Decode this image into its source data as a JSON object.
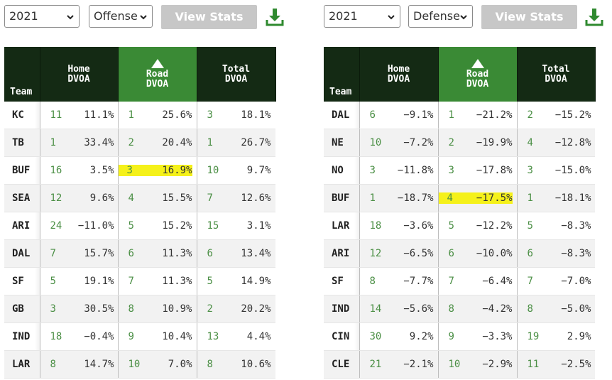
{
  "colors": {
    "header_dark": "#142a14",
    "header_highlight": "#3a8a35",
    "rank_text": "#4b8f45",
    "button_bg": "#c7c7c7",
    "highlight": "#f5f11a"
  },
  "panels": [
    {
      "year_select": "2021",
      "side_select": "Offense",
      "view_button": "View Stats",
      "download_icon": "download-icon",
      "headers": {
        "team": "Team",
        "home": [
          "Home",
          "DVOA"
        ],
        "road": [
          "Road",
          "DVOA"
        ],
        "total": [
          "Total",
          "DVOA"
        ],
        "sort_indicator": "triangle-up"
      },
      "highlight_row": 2,
      "rows": [
        {
          "team": "KC",
          "home_rank": "11",
          "home_dvoa": "11.1%",
          "road_rank": "1",
          "road_dvoa": "25.6%",
          "total_rank": "3",
          "total_dvoa": "18.1%"
        },
        {
          "team": "TB",
          "home_rank": "1",
          "home_dvoa": "33.4%",
          "road_rank": "2",
          "road_dvoa": "20.4%",
          "total_rank": "1",
          "total_dvoa": "26.7%"
        },
        {
          "team": "BUF",
          "home_rank": "16",
          "home_dvoa": "3.5%",
          "road_rank": "3",
          "road_dvoa": "16.9%",
          "total_rank": "10",
          "total_dvoa": "9.7%"
        },
        {
          "team": "SEA",
          "home_rank": "12",
          "home_dvoa": "9.6%",
          "road_rank": "4",
          "road_dvoa": "15.5%",
          "total_rank": "7",
          "total_dvoa": "12.6%"
        },
        {
          "team": "ARI",
          "home_rank": "24",
          "home_dvoa": "−11.0%",
          "road_rank": "5",
          "road_dvoa": "15.2%",
          "total_rank": "15",
          "total_dvoa": "3.1%"
        },
        {
          "team": "DAL",
          "home_rank": "7",
          "home_dvoa": "15.7%",
          "road_rank": "6",
          "road_dvoa": "11.3%",
          "total_rank": "6",
          "total_dvoa": "13.4%"
        },
        {
          "team": "SF",
          "home_rank": "5",
          "home_dvoa": "19.1%",
          "road_rank": "7",
          "road_dvoa": "11.3%",
          "total_rank": "5",
          "total_dvoa": "14.9%"
        },
        {
          "team": "GB",
          "home_rank": "3",
          "home_dvoa": "30.5%",
          "road_rank": "8",
          "road_dvoa": "10.9%",
          "total_rank": "2",
          "total_dvoa": "20.2%"
        },
        {
          "team": "IND",
          "home_rank": "18",
          "home_dvoa": "−0.4%",
          "road_rank": "9",
          "road_dvoa": "10.4%",
          "total_rank": "13",
          "total_dvoa": "4.4%"
        },
        {
          "team": "LAR",
          "home_rank": "8",
          "home_dvoa": "14.7%",
          "road_rank": "10",
          "road_dvoa": "7.0%",
          "total_rank": "8",
          "total_dvoa": "10.6%"
        }
      ]
    },
    {
      "year_select": "2021",
      "side_select": "Defense",
      "view_button": "View Stats",
      "download_icon": "download-icon",
      "headers": {
        "team": "Team",
        "home": [
          "Home",
          "DVOA"
        ],
        "road": [
          "Road",
          "DVOA"
        ],
        "total": [
          "Total",
          "DVOA"
        ],
        "sort_indicator": "triangle-up"
      },
      "highlight_row": 3,
      "rows": [
        {
          "team": "DAL",
          "home_rank": "6",
          "home_dvoa": "−9.1%",
          "road_rank": "1",
          "road_dvoa": "−21.2%",
          "total_rank": "2",
          "total_dvoa": "−15.2%"
        },
        {
          "team": "NE",
          "home_rank": "10",
          "home_dvoa": "−7.2%",
          "road_rank": "2",
          "road_dvoa": "−19.9%",
          "total_rank": "4",
          "total_dvoa": "−12.8%"
        },
        {
          "team": "NO",
          "home_rank": "3",
          "home_dvoa": "−11.8%",
          "road_rank": "3",
          "road_dvoa": "−17.8%",
          "total_rank": "3",
          "total_dvoa": "−15.0%"
        },
        {
          "team": "BUF",
          "home_rank": "1",
          "home_dvoa": "−18.7%",
          "road_rank": "4",
          "road_dvoa": "−17.5%",
          "total_rank": "1",
          "total_dvoa": "−18.1%"
        },
        {
          "team": "LAR",
          "home_rank": "18",
          "home_dvoa": "−3.6%",
          "road_rank": "5",
          "road_dvoa": "−12.2%",
          "total_rank": "5",
          "total_dvoa": "−8.3%"
        },
        {
          "team": "ARI",
          "home_rank": "12",
          "home_dvoa": "−6.5%",
          "road_rank": "6",
          "road_dvoa": "−10.0%",
          "total_rank": "6",
          "total_dvoa": "−8.3%"
        },
        {
          "team": "SF",
          "home_rank": "8",
          "home_dvoa": "−7.7%",
          "road_rank": "7",
          "road_dvoa": "−6.4%",
          "total_rank": "7",
          "total_dvoa": "−7.0%"
        },
        {
          "team": "IND",
          "home_rank": "14",
          "home_dvoa": "−5.6%",
          "road_rank": "8",
          "road_dvoa": "−4.2%",
          "total_rank": "8",
          "total_dvoa": "−5.0%"
        },
        {
          "team": "CIN",
          "home_rank": "30",
          "home_dvoa": "9.2%",
          "road_rank": "9",
          "road_dvoa": "−3.3%",
          "total_rank": "19",
          "total_dvoa": "2.9%"
        },
        {
          "team": "CLE",
          "home_rank": "21",
          "home_dvoa": "−2.1%",
          "road_rank": "10",
          "road_dvoa": "−2.9%",
          "total_rank": "11",
          "total_dvoa": "−2.5%"
        }
      ]
    }
  ]
}
